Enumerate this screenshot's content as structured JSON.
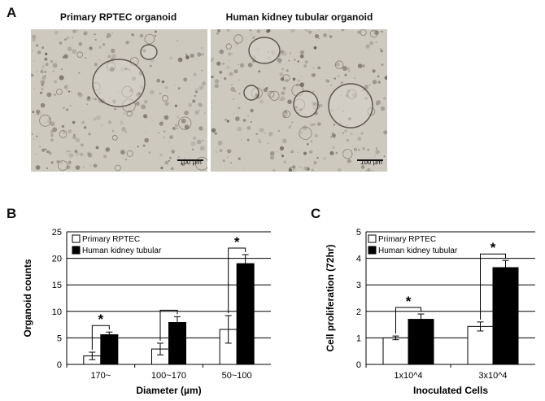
{
  "panels": {
    "a_letter": "A",
    "b_letter": "B",
    "c_letter": "C"
  },
  "micrographs": [
    {
      "title": "Primary RPTEC organoid",
      "scale_bar": "100 µm"
    },
    {
      "title": "Human kidney tubular organoid",
      "scale_bar": "100 µm"
    }
  ],
  "chart_data": [
    {
      "type": "bar",
      "panel": "B",
      "xlabel": "Diameter (µm)",
      "ylabel": "Organoid counts",
      "ylim": [
        0,
        25
      ],
      "yticks": [
        0,
        5,
        10,
        15,
        20,
        25
      ],
      "grid": true,
      "legend_position": "top-left",
      "categories": [
        "170~",
        "100~170",
        "50~100"
      ],
      "series": [
        {
          "name": "Primary RPTEC",
          "values": [
            1.6,
            2.9,
            6.6
          ],
          "errors": [
            0.7,
            1.1,
            2.6
          ],
          "color": "#ffffff"
        },
        {
          "name": "Human kidney tubular",
          "values": [
            5.6,
            7.9,
            19.0
          ],
          "errors": [
            0.5,
            1.1,
            1.7
          ],
          "color": "#000000"
        }
      ],
      "significance": [
        "*",
        "",
        "*"
      ]
    },
    {
      "type": "bar",
      "panel": "C",
      "xlabel": "Inoculated Cells",
      "ylabel": "Cell proliferation (72hr)",
      "ylim": [
        0,
        5
      ],
      "yticks": [
        0,
        1,
        2,
        3,
        4,
        5
      ],
      "grid": true,
      "legend_position": "top-left",
      "categories": [
        "1x10^4",
        "3x10^4"
      ],
      "series": [
        {
          "name": "Primary RPTEC",
          "values": [
            1.0,
            1.43
          ],
          "errors": [
            0.07,
            0.17
          ],
          "color": "#ffffff"
        },
        {
          "name": "Human kidney tubular",
          "values": [
            1.7,
            3.65
          ],
          "errors": [
            0.2,
            0.27
          ],
          "color": "#000000"
        }
      ],
      "significance": [
        "*",
        "*"
      ]
    }
  ]
}
